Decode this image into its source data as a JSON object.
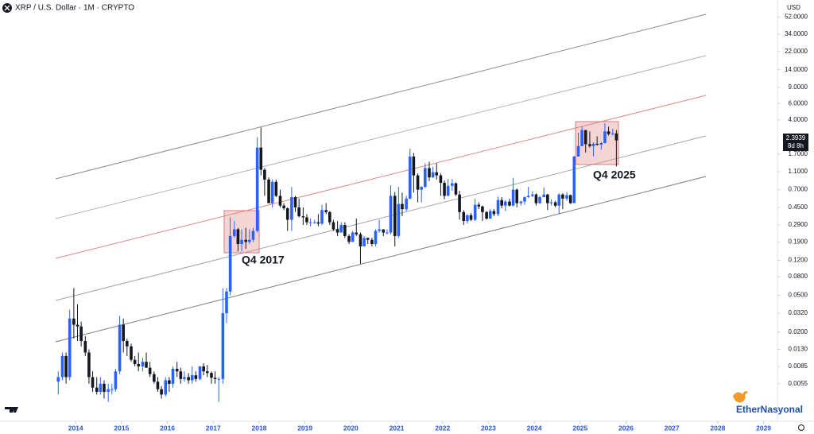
{
  "chart_data": {
    "type": "candlestick",
    "title": "XRP / U.S. Dollar · 1M · CRYPTO",
    "currency": "USD",
    "last_price": 2.3939,
    "countdown": "8d 8h",
    "annotations": [
      "Q4 2017",
      "Q4 2025"
    ],
    "watermark": "EtherNasyonal",
    "log_scale": true,
    "up_color": "#2962ff",
    "down_color": "#131722",
    "xlim": [
      2012.35,
      2029.25
    ],
    "xticks": [
      2014,
      2015,
      2016,
      2017,
      2018,
      2019,
      2020,
      2021,
      2022,
      2023,
      2024,
      2025,
      2026,
      2027,
      2028,
      2029
    ],
    "ylim": [
      0.0022,
      68
    ],
    "yticks": [
      {
        "value": 0.0055,
        "label": "0.0055"
      },
      {
        "value": 0.0085,
        "label": "0.0085"
      },
      {
        "value": 0.013,
        "label": "0.0130"
      },
      {
        "value": 0.02,
        "label": "0.0200"
      },
      {
        "value": 0.032,
        "label": "0.0320"
      },
      {
        "value": 0.05,
        "label": "0.0500"
      },
      {
        "value": 0.08,
        "label": "0.0800"
      },
      {
        "value": 0.12,
        "label": "0.1200"
      },
      {
        "value": 0.19,
        "label": "0.1900"
      },
      {
        "value": 0.29,
        "label": "0.2900"
      },
      {
        "value": 0.45,
        "label": "0.4500"
      },
      {
        "value": 0.7,
        "label": "0.7000"
      },
      {
        "value": 1.1,
        "label": "1.1000"
      },
      {
        "value": 1.7,
        "label": "1.7000"
      },
      {
        "value": 4,
        "label": "4.0000"
      },
      {
        "value": 6,
        "label": "6.0000"
      },
      {
        "value": 9,
        "label": "9.0000"
      },
      {
        "value": 14,
        "label": "14.0000"
      },
      {
        "value": 22,
        "label": "22.0000"
      },
      {
        "value": 34,
        "label": "34.0000"
      },
      {
        "value": 52,
        "label": "52.0000"
      }
    ],
    "x": [
      2013.62,
      2013.71,
      2013.79,
      2013.87,
      2013.96,
      2014.04,
      2014.12,
      2014.21,
      2014.29,
      2014.37,
      2014.46,
      2014.54,
      2014.62,
      2014.71,
      2014.79,
      2014.87,
      2014.96,
      2015.04,
      2015.12,
      2015.21,
      2015.29,
      2015.37,
      2015.46,
      2015.54,
      2015.62,
      2015.71,
      2015.79,
      2015.87,
      2015.96,
      2016.04,
      2016.12,
      2016.21,
      2016.29,
      2016.37,
      2016.46,
      2016.54,
      2016.62,
      2016.71,
      2016.79,
      2016.87,
      2016.96,
      2017.04,
      2017.12,
      2017.21,
      2017.29,
      2017.37,
      2017.46,
      2017.54,
      2017.62,
      2017.71,
      2017.79,
      2017.87,
      2017.96,
      2018.04,
      2018.12,
      2018.21,
      2018.29,
      2018.37,
      2018.46,
      2018.54,
      2018.62,
      2018.71,
      2018.79,
      2018.87,
      2018.96,
      2019.04,
      2019.12,
      2019.21,
      2019.29,
      2019.37,
      2019.46,
      2019.54,
      2019.62,
      2019.71,
      2019.79,
      2019.87,
      2019.96,
      2020.04,
      2020.12,
      2020.21,
      2020.29,
      2020.37,
      2020.46,
      2020.54,
      2020.62,
      2020.71,
      2020.79,
      2020.87,
      2020.96,
      2021.04,
      2021.12,
      2021.21,
      2021.29,
      2021.37,
      2021.46,
      2021.54,
      2021.62,
      2021.71,
      2021.79,
      2021.87,
      2021.96,
      2022.04,
      2022.12,
      2022.21,
      2022.29,
      2022.37,
      2022.46,
      2022.54,
      2022.62,
      2022.71,
      2022.79,
      2022.87,
      2022.96,
      2023.04,
      2023.12,
      2023.21,
      2023.29,
      2023.37,
      2023.46,
      2023.54,
      2023.62,
      2023.71,
      2023.79,
      2023.87,
      2023.96,
      2024.04,
      2024.12,
      2024.21,
      2024.29,
      2024.37,
      2024.46,
      2024.54,
      2024.62,
      2024.71,
      2024.79,
      2024.87,
      2024.96,
      2025.04,
      2025.12,
      2025.21,
      2025.29,
      2025.37,
      2025.46,
      2025.54,
      2025.62,
      2025.71,
      2025.79
    ],
    "open": [
      0.0058,
      0.0065,
      0.011,
      0.0065,
      0.028,
      0.024,
      0.023,
      0.016,
      0.012,
      0.0065,
      0.005,
      0.0045,
      0.0055,
      0.0045,
      0.0048,
      0.0048,
      0.0075,
      0.024,
      0.016,
      0.014,
      0.01,
      0.009,
      0.0085,
      0.0095,
      0.0082,
      0.007,
      0.0058,
      0.0048,
      0.0042,
      0.006,
      0.0055,
      0.008,
      0.0075,
      0.0062,
      0.0065,
      0.006,
      0.0068,
      0.0062,
      0.0085,
      0.0075,
      0.0072,
      0.0064,
      0.0062,
      0.0062,
      0.032,
      0.055,
      0.22,
      0.26,
      0.18,
      0.2,
      0.19,
      0.2,
      0.25,
      2.0,
      1.15,
      0.9,
      0.5,
      0.85,
      0.6,
      0.47,
      0.44,
      0.33,
      0.58,
      0.45,
      0.36,
      0.35,
      0.31,
      0.31,
      0.31,
      0.3,
      0.42,
      0.4,
      0.31,
      0.26,
      0.24,
      0.29,
      0.22,
      0.19,
      0.24,
      0.23,
      0.17,
      0.21,
      0.2,
      0.18,
      0.25,
      0.26,
      0.24,
      0.24,
      0.6,
      0.22,
      0.49,
      0.43,
      0.56,
      1.6,
      1.0,
      0.7,
      0.75,
      1.2,
      0.95,
      1.08,
      1.0,
      0.83,
      0.6,
      0.77,
      0.82,
      0.62,
      0.4,
      0.32,
      0.37,
      0.33,
      0.48,
      0.46,
      0.4,
      0.34,
      0.41,
      0.38,
      0.54,
      0.47,
      0.52,
      0.47,
      0.7,
      0.5,
      0.52,
      0.58,
      0.6,
      0.62,
      0.5,
      0.58,
      0.62,
      0.5,
      0.51,
      0.47,
      0.62,
      0.56,
      0.61,
      0.5,
      1.6,
      2.08,
      3.1,
      2.18,
      2.08,
      2.2,
      2.15,
      2.24,
      3.0,
      2.8,
      2.85
    ],
    "high": [
      0.0075,
      0.012,
      0.012,
      0.035,
      0.06,
      0.04,
      0.026,
      0.018,
      0.013,
      0.0075,
      0.0065,
      0.0065,
      0.006,
      0.0055,
      0.0055,
      0.008,
      0.03,
      0.028,
      0.017,
      0.015,
      0.011,
      0.012,
      0.0105,
      0.012,
      0.0095,
      0.0075,
      0.0065,
      0.0052,
      0.0065,
      0.0065,
      0.0085,
      0.0095,
      0.0082,
      0.0075,
      0.0072,
      0.0085,
      0.0075,
      0.0085,
      0.0092,
      0.0088,
      0.0075,
      0.0075,
      0.0065,
      0.06,
      0.06,
      0.35,
      0.32,
      0.27,
      0.26,
      0.27,
      0.26,
      0.27,
      2.6,
      3.3,
      1.2,
      0.95,
      0.9,
      0.9,
      0.7,
      0.5,
      0.45,
      0.75,
      0.6,
      0.56,
      0.45,
      0.38,
      0.34,
      0.33,
      0.38,
      0.48,
      0.5,
      0.41,
      0.33,
      0.32,
      0.31,
      0.31,
      0.23,
      0.25,
      0.34,
      0.24,
      0.22,
      0.21,
      0.21,
      0.26,
      0.33,
      0.26,
      0.26,
      0.78,
      0.66,
      0.75,
      0.65,
      0.6,
      1.96,
      1.75,
      1.05,
      0.76,
      1.35,
      1.41,
      1.24,
      1.35,
      1.05,
      0.88,
      0.91,
      0.91,
      0.84,
      0.68,
      0.42,
      0.38,
      0.39,
      0.56,
      0.51,
      0.47,
      0.41,
      0.43,
      0.43,
      0.59,
      0.58,
      0.54,
      0.56,
      0.94,
      0.72,
      0.53,
      0.59,
      0.75,
      0.67,
      0.64,
      0.6,
      0.74,
      0.63,
      0.55,
      0.53,
      0.64,
      0.64,
      0.66,
      0.62,
      1.63,
      2.9,
      3.4,
      3.1,
      3.0,
      2.28,
      2.65,
      2.3,
      3.66,
      3.38,
      3.19,
      3.1
    ],
    "low": [
      0.0042,
      0.006,
      0.0055,
      0.006,
      0.017,
      0.016,
      0.014,
      0.011,
      0.0055,
      0.0045,
      0.0042,
      0.0042,
      0.0038,
      0.0035,
      0.0042,
      0.0045,
      0.007,
      0.012,
      0.011,
      0.0095,
      0.0085,
      0.0075,
      0.0075,
      0.0085,
      0.0065,
      0.0055,
      0.0045,
      0.0038,
      0.004,
      0.0045,
      0.005,
      0.0065,
      0.0055,
      0.0058,
      0.0055,
      0.0055,
      0.0058,
      0.006,
      0.0068,
      0.0065,
      0.0055,
      0.0055,
      0.0035,
      0.0055,
      0.025,
      0.05,
      0.21,
      0.15,
      0.15,
      0.16,
      0.18,
      0.19,
      0.24,
      1.0,
      0.6,
      0.5,
      0.45,
      0.58,
      0.45,
      0.42,
      0.25,
      0.25,
      0.4,
      0.35,
      0.29,
      0.29,
      0.28,
      0.3,
      0.28,
      0.29,
      0.38,
      0.29,
      0.25,
      0.22,
      0.24,
      0.21,
      0.18,
      0.19,
      0.22,
      0.11,
      0.17,
      0.18,
      0.17,
      0.17,
      0.24,
      0.22,
      0.23,
      0.23,
      0.17,
      0.21,
      0.36,
      0.41,
      0.55,
      0.65,
      0.51,
      0.51,
      0.73,
      0.87,
      0.94,
      0.9,
      0.6,
      0.55,
      0.6,
      0.68,
      0.6,
      0.33,
      0.29,
      0.3,
      0.32,
      0.32,
      0.43,
      0.32,
      0.33,
      0.34,
      0.36,
      0.36,
      0.44,
      0.41,
      0.46,
      0.46,
      0.45,
      0.47,
      0.48,
      0.57,
      0.58,
      0.47,
      0.49,
      0.58,
      0.42,
      0.47,
      0.45,
      0.38,
      0.43,
      0.53,
      0.49,
      0.5,
      1.6,
      2.06,
      1.77,
      2.0,
      1.61,
      2.1,
      1.9,
      2.22,
      2.7,
      2.7,
      1.25
    ],
    "close": [
      0.0065,
      0.011,
      0.0065,
      0.028,
      0.024,
      0.023,
      0.016,
      0.012,
      0.0065,
      0.005,
      0.0045,
      0.0055,
      0.0045,
      0.0048,
      0.0048,
      0.0075,
      0.024,
      0.016,
      0.014,
      0.01,
      0.009,
      0.0085,
      0.0095,
      0.0082,
      0.007,
      0.0058,
      0.0048,
      0.0042,
      0.006,
      0.0055,
      0.008,
      0.0075,
      0.0062,
      0.0065,
      0.006,
      0.0068,
      0.0062,
      0.0085,
      0.0075,
      0.0072,
      0.0064,
      0.0062,
      0.0062,
      0.032,
      0.055,
      0.22,
      0.26,
      0.18,
      0.2,
      0.19,
      0.2,
      0.25,
      2.0,
      1.15,
      0.9,
      0.5,
      0.85,
      0.6,
      0.47,
      0.44,
      0.33,
      0.58,
      0.45,
      0.36,
      0.35,
      0.31,
      0.31,
      0.31,
      0.3,
      0.42,
      0.4,
      0.31,
      0.26,
      0.24,
      0.29,
      0.22,
      0.19,
      0.24,
      0.23,
      0.17,
      0.21,
      0.2,
      0.18,
      0.25,
      0.26,
      0.24,
      0.24,
      0.6,
      0.22,
      0.49,
      0.43,
      0.56,
      1.6,
      1.0,
      0.7,
      0.75,
      1.2,
      0.95,
      1.08,
      1.0,
      0.83,
      0.6,
      0.77,
      0.82,
      0.62,
      0.4,
      0.32,
      0.37,
      0.33,
      0.48,
      0.46,
      0.4,
      0.34,
      0.41,
      0.38,
      0.54,
      0.47,
      0.52,
      0.47,
      0.7,
      0.5,
      0.52,
      0.58,
      0.6,
      0.62,
      0.5,
      0.58,
      0.62,
      0.5,
      0.51,
      0.47,
      0.62,
      0.56,
      0.61,
      0.5,
      1.6,
      2.08,
      3.1,
      2.18,
      2.08,
      2.2,
      2.15,
      2.24,
      3.0,
      2.8,
      2.85,
      2.3939
    ]
  }
}
